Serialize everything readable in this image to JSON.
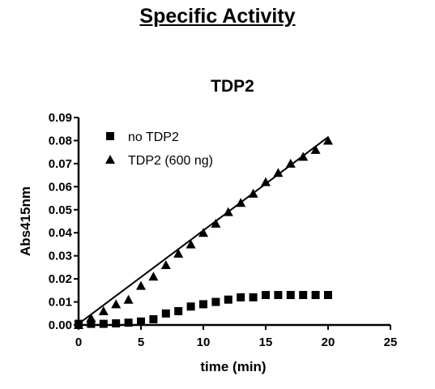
{
  "page": {
    "title": "Specific Activity"
  },
  "chart_data": {
    "type": "scatter",
    "title": "TDP2",
    "xlabel": "time (min)",
    "ylabel": "Abs415nm",
    "xlim": [
      0,
      25
    ],
    "ylim": [
      0,
      0.09
    ],
    "x_ticks": [
      "0",
      "5",
      "10",
      "15",
      "20",
      "25"
    ],
    "y_ticks": [
      "0.00",
      "0.01",
      "0.02",
      "0.03",
      "0.04",
      "0.05",
      "0.06",
      "0.07",
      "0.08",
      "0.09"
    ],
    "legend_position": "top-left",
    "grid": false,
    "series": [
      {
        "name": "no TDP2",
        "marker": "square",
        "color": "#000000",
        "x": [
          0,
          1,
          2,
          3,
          4,
          5,
          6,
          7,
          8,
          9,
          10,
          11,
          12,
          13,
          14,
          15,
          16,
          17,
          18,
          19,
          20
        ],
        "y": [
          0.0005,
          0.0005,
          0.0005,
          0.0007,
          0.001,
          0.0015,
          0.0025,
          0.005,
          0.006,
          0.008,
          0.009,
          0.01,
          0.011,
          0.012,
          0.012,
          0.013,
          0.013,
          0.013,
          0.013,
          0.013,
          0.013
        ]
      },
      {
        "name": "TDP2 (600 ng)",
        "marker": "triangle",
        "color": "#000000",
        "fit_line": true,
        "fit": {
          "slope": 0.00405,
          "intercept": 0.0005
        },
        "x": [
          0,
          1,
          2,
          3,
          4,
          5,
          6,
          7,
          8,
          9,
          10,
          11,
          12,
          13,
          14,
          15,
          16,
          17,
          18,
          19,
          20
        ],
        "y": [
          0.0,
          0.003,
          0.006,
          0.009,
          0.011,
          0.017,
          0.021,
          0.026,
          0.031,
          0.035,
          0.04,
          0.044,
          0.049,
          0.053,
          0.057,
          0.062,
          0.066,
          0.07,
          0.073,
          0.076,
          0.08
        ]
      }
    ]
  }
}
